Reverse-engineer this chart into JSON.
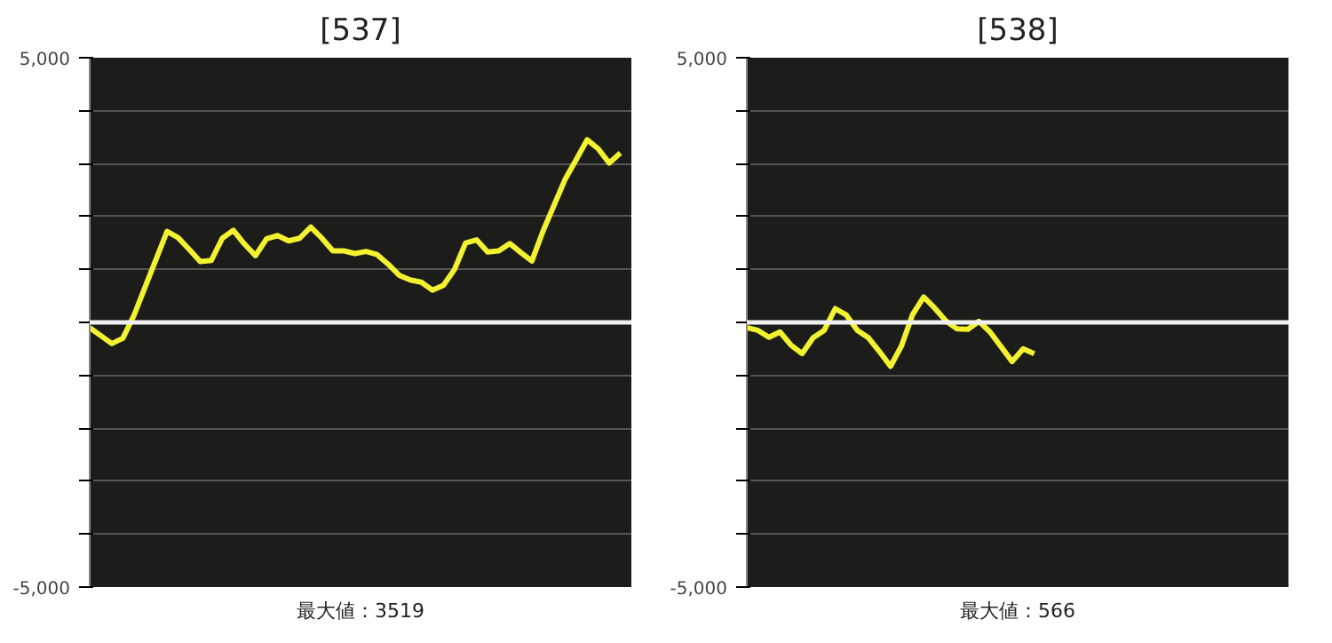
{
  "chart_data": [
    {
      "type": "line",
      "title": "[537]",
      "annotations": [
        "最大値：3519"
      ],
      "ylim": [
        -5000,
        5000
      ],
      "tick_labels": "y",
      "grid": "y",
      "marker": "none",
      "line_style": "solid",
      "categories": [
        null,
        null,
        null,
        null,
        null,
        null,
        null,
        null,
        null,
        null,
        null,
        null,
        null,
        null,
        null,
        null,
        null,
        null,
        null,
        null,
        null,
        null,
        null,
        null,
        null,
        null,
        null,
        null,
        null,
        null,
        null,
        null,
        null,
        null,
        null,
        null,
        null,
        null,
        null,
        null,
        null,
        null,
        null,
        null,
        null,
        null,
        null,
        null,
        null
      ],
      "yticks": [
        {
          "value": -5000,
          "label": "-5,000"
        },
        {
          "value": -4000,
          "label": null
        },
        {
          "value": -3000,
          "label": null
        },
        {
          "value": -2000,
          "label": null
        },
        {
          "value": -1000,
          "label": null
        },
        {
          "value": 0,
          "label": null
        },
        {
          "value": 1000,
          "label": null
        },
        {
          "value": 2000,
          "label": null
        },
        {
          "value": 3000,
          "label": null
        },
        {
          "value": 4000,
          "label": null
        },
        {
          "value": 5000,
          "label": "5,000"
        }
      ],
      "ref_lines": [
        {
          "axis": "y",
          "value": 0,
          "label": null,
          "color": "#f0f0f0"
        }
      ],
      "series": [
        {
          "color": "#f2f230",
          "values": [
            -100,
            -250,
            -400,
            -300,
            130,
            660,
            1190,
            1720,
            1600,
            1380,
            1150,
            1170,
            1590,
            1740,
            1480,
            1260,
            1580,
            1640,
            1540,
            1590,
            1800,
            1590,
            1350,
            1350,
            1300,
            1340,
            1280,
            1100,
            890,
            800,
            760,
            610,
            700,
            1000,
            1500,
            1560,
            1330,
            1350,
            1490,
            1320,
            1160,
            1720,
            2210,
            2700,
            3070,
            3450,
            3280,
            3010,
            3200
          ]
        }
      ]
    },
    {
      "type": "line",
      "title": "[538]",
      "annotations": [
        "最大値：566"
      ],
      "ylim": [
        -5000,
        5000
      ],
      "tick_labels": "y",
      "grid": "y",
      "marker": "none",
      "line_style": "solid",
      "categories": [
        null,
        null,
        null,
        null,
        null,
        null,
        null,
        null,
        null,
        null,
        null,
        null,
        null,
        null,
        null,
        null,
        null,
        null,
        null,
        null,
        null,
        null,
        null,
        null,
        null,
        null,
        null,
        null,
        null,
        null,
        null,
        null,
        null,
        null,
        null,
        null,
        null,
        null,
        null,
        null,
        null,
        null,
        null,
        null,
        null,
        null,
        null,
        null,
        null
      ],
      "yticks": [
        {
          "value": -5000,
          "label": "-5,000"
        },
        {
          "value": -4000,
          "label": null
        },
        {
          "value": -3000,
          "label": null
        },
        {
          "value": -2000,
          "label": null
        },
        {
          "value": -1000,
          "label": null
        },
        {
          "value": 0,
          "label": null
        },
        {
          "value": 1000,
          "label": null
        },
        {
          "value": 2000,
          "label": null
        },
        {
          "value": 3000,
          "label": null
        },
        {
          "value": 4000,
          "label": null
        },
        {
          "value": 5000,
          "label": "5,000"
        }
      ],
      "ref_lines": [
        {
          "axis": "y",
          "value": 0,
          "label": null,
          "color": "#f0f0f0"
        }
      ],
      "series": [
        {
          "color": "#f2f230",
          "values": [
            -100,
            -150,
            -280,
            -180,
            -430,
            -590,
            -290,
            -150,
            260,
            140,
            -150,
            -290,
            -550,
            -830,
            -440,
            150,
            480,
            270,
            30,
            -120,
            -130,
            20,
            -180,
            -460,
            -740,
            -500,
            -590,
            null,
            null,
            null,
            null,
            null,
            null,
            null,
            null,
            null,
            null,
            null,
            null,
            null,
            null,
            null,
            null,
            null,
            null,
            null,
            null,
            null,
            null
          ]
        }
      ]
    }
  ]
}
